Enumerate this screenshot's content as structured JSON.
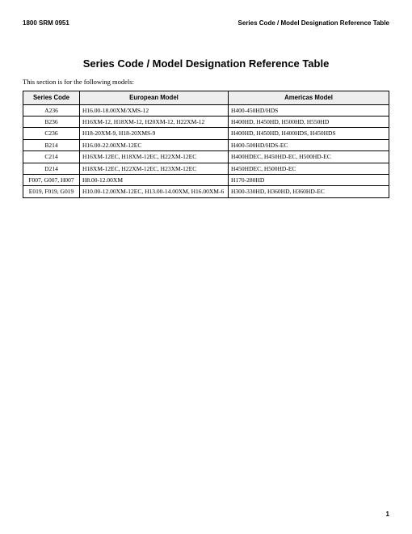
{
  "header": {
    "left": "1800 SRM 0951",
    "right": "Series Code / Model Designation Reference Table"
  },
  "title": "Series Code / Model Designation Reference Table",
  "intro": "This section is for the following models:",
  "table": {
    "headers": {
      "series": "Series Code",
      "euro": "European Model",
      "amer": "Americas Model"
    },
    "col_widths": {
      "series": 70,
      "euro": 184
    },
    "rows": [
      {
        "series": "A236",
        "euro": "H16.00-18.00XM/XMS-12",
        "amer": "H400-450HD/HDS"
      },
      {
        "series": "B236",
        "euro": "H16XM-12, H18XM-12, H20XM-12, H22XM-12",
        "amer": "H400HD, H450HD, H500HD, H550HD"
      },
      {
        "series": "C236",
        "euro": "H18-20XM-9, H18-20XMS-9",
        "amer": "H400HD, H450HD, H400HDS, H450HDS"
      },
      {
        "series": "B214",
        "euro": "H16.00-22.00XM-12EC",
        "amer": "H400-500HD/HDS-EC"
      },
      {
        "series": "C214",
        "euro": "H16XM-12EC, H18XM-12EC, H22XM-12EC",
        "amer": "H400HDEC, H450HD-EC, H500HD-EC"
      },
      {
        "series": "D214",
        "euro": "H18XM-12EC, H22XM-12EC, H23XM-12EC",
        "amer": "H450HDEC, H500HD-EC"
      },
      {
        "series": "F007, G007, H007",
        "euro": "H8.00-12.00XM",
        "amer": "H170-280HD"
      },
      {
        "series": "E019, F019, G019",
        "euro": "H10.00-12.00XM-12EC, H13.00-14.00XM, H16.00XM-6",
        "amer": "H300-330HD, H360HD, H360HD-EC"
      }
    ]
  },
  "page_number": "1",
  "styles": {
    "font_body": "Georgia, 'Times New Roman', serif",
    "font_sans": "Arial, sans-serif",
    "header_font_size": 8,
    "title_font_size": 13,
    "intro_font_size": 8.5,
    "table_font_size": 7.5,
    "th_bg": "#eeeeee",
    "border_color": "#000000",
    "page_bg": "#ffffff"
  }
}
